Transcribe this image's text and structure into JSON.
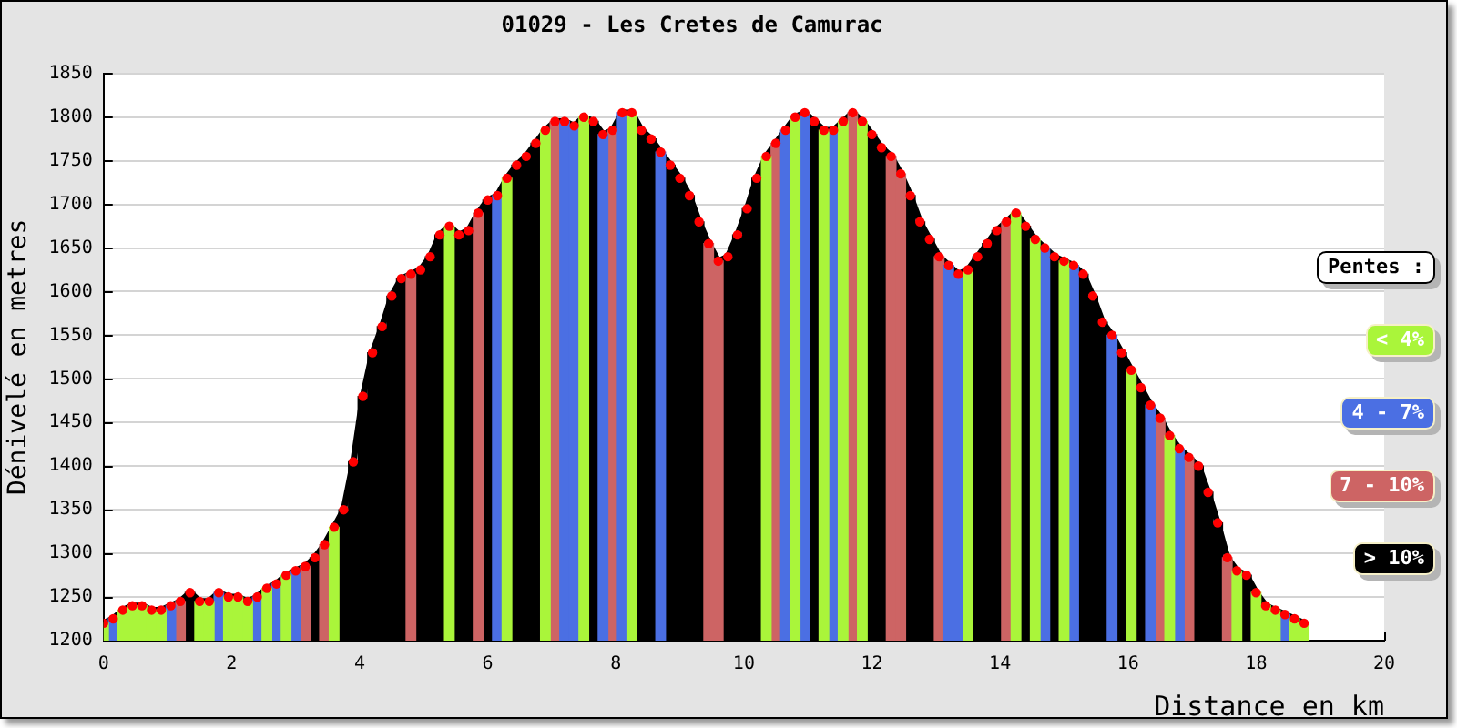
{
  "chart_data": {
    "type": "bar",
    "title": "01029 - Les Cretes de Camurac",
    "xlabel": "Distance en km",
    "ylabel": "Dénivelé en metres",
    "legend_title": "Pentes :",
    "legend": "right",
    "grid": "y",
    "x": [
      0,
      0.15,
      0.3,
      0.45,
      0.6,
      0.75,
      0.9,
      1.05,
      1.2,
      1.35,
      1.5,
      1.65,
      1.8,
      1.95,
      2.1,
      2.25,
      2.4,
      2.55,
      2.7,
      2.85,
      3,
      3.15,
      3.3,
      3.45,
      3.6,
      3.75,
      3.9,
      4.05,
      4.2,
      4.35,
      4.5,
      4.65,
      4.8,
      4.95,
      5.1,
      5.25,
      5.4,
      5.55,
      5.7,
      5.85,
      6,
      6.15,
      6.3,
      6.45,
      6.6,
      6.75,
      6.9,
      7.05,
      7.2,
      7.35,
      7.5,
      7.65,
      7.8,
      7.95,
      8.1,
      8.25,
      8.4,
      8.55,
      8.7,
      8.85,
      9,
      9.15,
      9.3,
      9.45,
      9.6,
      9.75,
      9.9,
      10.05,
      10.2,
      10.35,
      10.5,
      10.65,
      10.8,
      10.95,
      11.1,
      11.25,
      11.4,
      11.55,
      11.7,
      11.85,
      12,
      12.15,
      12.3,
      12.45,
      12.6,
      12.75,
      12.9,
      13.05,
      13.2,
      13.35,
      13.5,
      13.65,
      13.8,
      13.95,
      14.1,
      14.25,
      14.4,
      14.55,
      14.7,
      14.85,
      15,
      15.15,
      15.3,
      15.45,
      15.6,
      15.75,
      15.9,
      16.05,
      16.2,
      16.35,
      16.5,
      16.65,
      16.8,
      16.95,
      17.1,
      17.25,
      17.4,
      17.55,
      17.7,
      17.85,
      18,
      18.15,
      18.3,
      18.45,
      18.6,
      18.75
    ],
    "xlim": [
      0,
      20
    ],
    "xticks": [
      0,
      2,
      4,
      6,
      8,
      10,
      12,
      14,
      16,
      18,
      20
    ],
    "ylim": [
      1200,
      1850
    ],
    "yticks": [
      1200,
      1250,
      1300,
      1350,
      1400,
      1450,
      1500,
      1550,
      1600,
      1650,
      1700,
      1750,
      1800,
      1850
    ],
    "series": [
      {
        "name": "< 4%",
        "color": "#aaf53a",
        "x": [
          0,
          0.3,
          0.45,
          0.6,
          0.75,
          0.9,
          1.5,
          1.65,
          1.95,
          2.1,
          2.25,
          2.55,
          2.85,
          3.6,
          5.4,
          6.3,
          6.9,
          7.5,
          8.25,
          10.35,
          10.8,
          11.25,
          11.55,
          11.85,
          13.5,
          14.25,
          14.55,
          15,
          16.05,
          16.65,
          17.7,
          18,
          18.15,
          18.3,
          18.6,
          18.75
        ],
        "values": [
          1220,
          1235,
          1240,
          1240,
          1235,
          1235,
          1245,
          1245,
          1250,
          1250,
          1245,
          1260,
          1275,
          1330,
          1675,
          1730,
          1785,
          1800,
          1805,
          1755,
          1800,
          1785,
          1795,
          1795,
          1625,
          1690,
          1660,
          1635,
          1510,
          1435,
          1280,
          1255,
          1240,
          1235,
          1225,
          1220
        ]
      },
      {
        "name": "4 - 7%",
        "color": "#4b6fe3",
        "x": [
          0.15,
          1.05,
          1.8,
          2.4,
          2.7,
          3,
          6.15,
          7.2,
          7.35,
          7.8,
          8.1,
          8.7,
          10.65,
          10.95,
          11.4,
          13.2,
          13.35,
          14.7,
          15.15,
          15.75,
          16.35,
          16.8,
          18.45
        ],
        "values": [
          1225,
          1240,
          1255,
          1250,
          1265,
          1280,
          1710,
          1795,
          1790,
          1780,
          1805,
          1760,
          1785,
          1805,
          1785,
          1630,
          1620,
          1650,
          1630,
          1550,
          1470,
          1420,
          1230
        ]
      },
      {
        "name": "7 - 10%",
        "color": "#cd6464",
        "x": [
          1.2,
          3.15,
          3.45,
          4.8,
          5.85,
          7.05,
          7.95,
          9.45,
          9.6,
          10.5,
          11.7,
          12.3,
          12.45,
          13.05,
          14.1,
          16.5,
          16.95,
          17.55
        ],
        "values": [
          1245,
          1285,
          1310,
          1620,
          1690,
          1795,
          1785,
          1655,
          1635,
          1770,
          1805,
          1755,
          1735,
          1640,
          1680,
          1455,
          1410,
          1295
        ]
      },
      {
        "name": "> 10%",
        "color": "#000000",
        "x": [
          1.35,
          3.3,
          3.75,
          3.9,
          4.05,
          4.2,
          4.35,
          4.5,
          4.65,
          4.95,
          5.1,
          5.25,
          5.55,
          5.7,
          6,
          6.45,
          6.6,
          6.75,
          7.65,
          8.4,
          8.55,
          8.85,
          9,
          9.15,
          9.3,
          9.75,
          9.9,
          10.05,
          10.2,
          11.1,
          12,
          12.15,
          12.6,
          12.75,
          12.9,
          13.65,
          13.8,
          13.95,
          14.4,
          14.85,
          15.3,
          15.45,
          15.6,
          15.9,
          16.2,
          17.1,
          17.25,
          17.4,
          17.85
        ],
        "values": [
          1255,
          1295,
          1350,
          1405,
          1480,
          1530,
          1560,
          1595,
          1615,
          1625,
          1640,
          1665,
          1665,
          1670,
          1705,
          1745,
          1755,
          1770,
          1795,
          1785,
          1775,
          1745,
          1730,
          1710,
          1680,
          1640,
          1665,
          1695,
          1730,
          1795,
          1780,
          1765,
          1710,
          1680,
          1660,
          1640,
          1655,
          1670,
          1675,
          1640,
          1620,
          1595,
          1565,
          1530,
          1490,
          1400,
          1370,
          1335,
          1275
        ]
      },
      {
        "type": "line",
        "color": "#000000",
        "values": [
          1220,
          1225,
          1235,
          1240,
          1240,
          1235,
          1235,
          1240,
          1245,
          1255,
          1245,
          1245,
          1255,
          1250,
          1250,
          1245,
          1250,
          1260,
          1265,
          1275,
          1280,
          1285,
          1295,
          1310,
          1330,
          1350,
          1405,
          1480,
          1530,
          1560,
          1595,
          1615,
          1620,
          1625,
          1640,
          1665,
          1675,
          1665,
          1670,
          1690,
          1705,
          1710,
          1730,
          1745,
          1755,
          1770,
          1785,
          1795,
          1795,
          1790,
          1800,
          1795,
          1780,
          1785,
          1805,
          1805,
          1785,
          1775,
          1760,
          1745,
          1730,
          1710,
          1680,
          1655,
          1635,
          1640,
          1665,
          1695,
          1730,
          1755,
          1770,
          1785,
          1800,
          1805,
          1795,
          1785,
          1785,
          1795,
          1805,
          1795,
          1780,
          1765,
          1755,
          1735,
          1710,
          1680,
          1660,
          1640,
          1630,
          1620,
          1625,
          1640,
          1655,
          1670,
          1680,
          1690,
          1675,
          1660,
          1650,
          1640,
          1635,
          1630,
          1620,
          1595,
          1565,
          1550,
          1530,
          1510,
          1490,
          1470,
          1455,
          1435,
          1420,
          1410,
          1400,
          1370,
          1335,
          1295,
          1280,
          1275,
          1255,
          1240,
          1235,
          1230,
          1225,
          1220
        ]
      },
      {
        "type": "scatter",
        "color": "#ff0000",
        "marker": "circle",
        "values": [
          1220,
          1225,
          1235,
          1240,
          1240,
          1235,
          1235,
          1240,
          1245,
          1255,
          1245,
          1245,
          1255,
          1250,
          1250,
          1245,
          1250,
          1260,
          1265,
          1275,
          1280,
          1285,
          1295,
          1310,
          1330,
          1350,
          1405,
          1480,
          1530,
          1560,
          1595,
          1615,
          1620,
          1625,
          1640,
          1665,
          1675,
          1665,
          1670,
          1690,
          1705,
          1710,
          1730,
          1745,
          1755,
          1770,
          1785,
          1795,
          1795,
          1790,
          1800,
          1795,
          1780,
          1785,
          1805,
          1805,
          1785,
          1775,
          1760,
          1745,
          1730,
          1710,
          1680,
          1655,
          1635,
          1640,
          1665,
          1695,
          1730,
          1755,
          1770,
          1785,
          1800,
          1805,
          1795,
          1785,
          1785,
          1795,
          1805,
          1795,
          1780,
          1765,
          1755,
          1735,
          1710,
          1680,
          1660,
          1640,
          1630,
          1620,
          1625,
          1640,
          1655,
          1670,
          1680,
          1690,
          1675,
          1660,
          1650,
          1640,
          1635,
          1630,
          1620,
          1595,
          1565,
          1550,
          1530,
          1510,
          1490,
          1470,
          1455,
          1435,
          1420,
          1410,
          1400,
          1370,
          1335,
          1295,
          1280,
          1275,
          1255,
          1240,
          1235,
          1230,
          1225,
          1220
        ]
      }
    ]
  }
}
